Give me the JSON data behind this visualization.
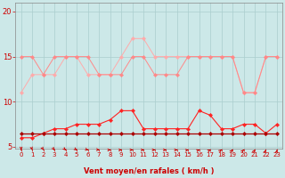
{
  "x": [
    0,
    1,
    2,
    3,
    4,
    5,
    6,
    7,
    8,
    9,
    10,
    11,
    12,
    13,
    14,
    15,
    16,
    17,
    18,
    19,
    20,
    21,
    22,
    23
  ],
  "line1_color": "#ffaaaa",
  "line2_color": "#ff8888",
  "line3_color": "#ff2222",
  "line4_color": "#aa0000",
  "line1": [
    11,
    13,
    13,
    13,
    15,
    15,
    13,
    13,
    13,
    15,
    17,
    17,
    15,
    15,
    15,
    15,
    15,
    15,
    15,
    15,
    11,
    11,
    15,
    15
  ],
  "line2": [
    15,
    15,
    13,
    15,
    15,
    15,
    15,
    13,
    13,
    13,
    15,
    15,
    13,
    13,
    13,
    15,
    15,
    15,
    15,
    15,
    11,
    11,
    15,
    15
  ],
  "line3": [
    6,
    6,
    6.5,
    7,
    7,
    7.5,
    7.5,
    7.5,
    8,
    9,
    9,
    7,
    7,
    7,
    7,
    7,
    9,
    8.5,
    7,
    7,
    7.5,
    7.5,
    6.5,
    7.5
  ],
  "line4": [
    6.5,
    6.5,
    6.5,
    6.5,
    6.5,
    6.5,
    6.5,
    6.5,
    6.5,
    6.5,
    6.5,
    6.5,
    6.5,
    6.5,
    6.5,
    6.5,
    6.5,
    6.5,
    6.5,
    6.5,
    6.5,
    6.5,
    6.5,
    6.5
  ],
  "arrow_angles": [
    0,
    15,
    25,
    35,
    45,
    55,
    70,
    80,
    90,
    90,
    90,
    90,
    90,
    90,
    90,
    100,
    110,
    120,
    130,
    140,
    140,
    150,
    160,
    170
  ],
  "ylim_bottom": 4.8,
  "ylim_top": 21,
  "xlim_left": -0.5,
  "xlim_right": 23.5,
  "yticks": [
    5,
    10,
    15,
    20
  ],
  "xlabel": "Vent moyen/en rafales ( km/h )",
  "bg_color": "#cce8e8",
  "grid_color": "#aacece",
  "spine_color": "#888888",
  "tick_color": "#cc0000",
  "arrow_color": "#cc0000"
}
